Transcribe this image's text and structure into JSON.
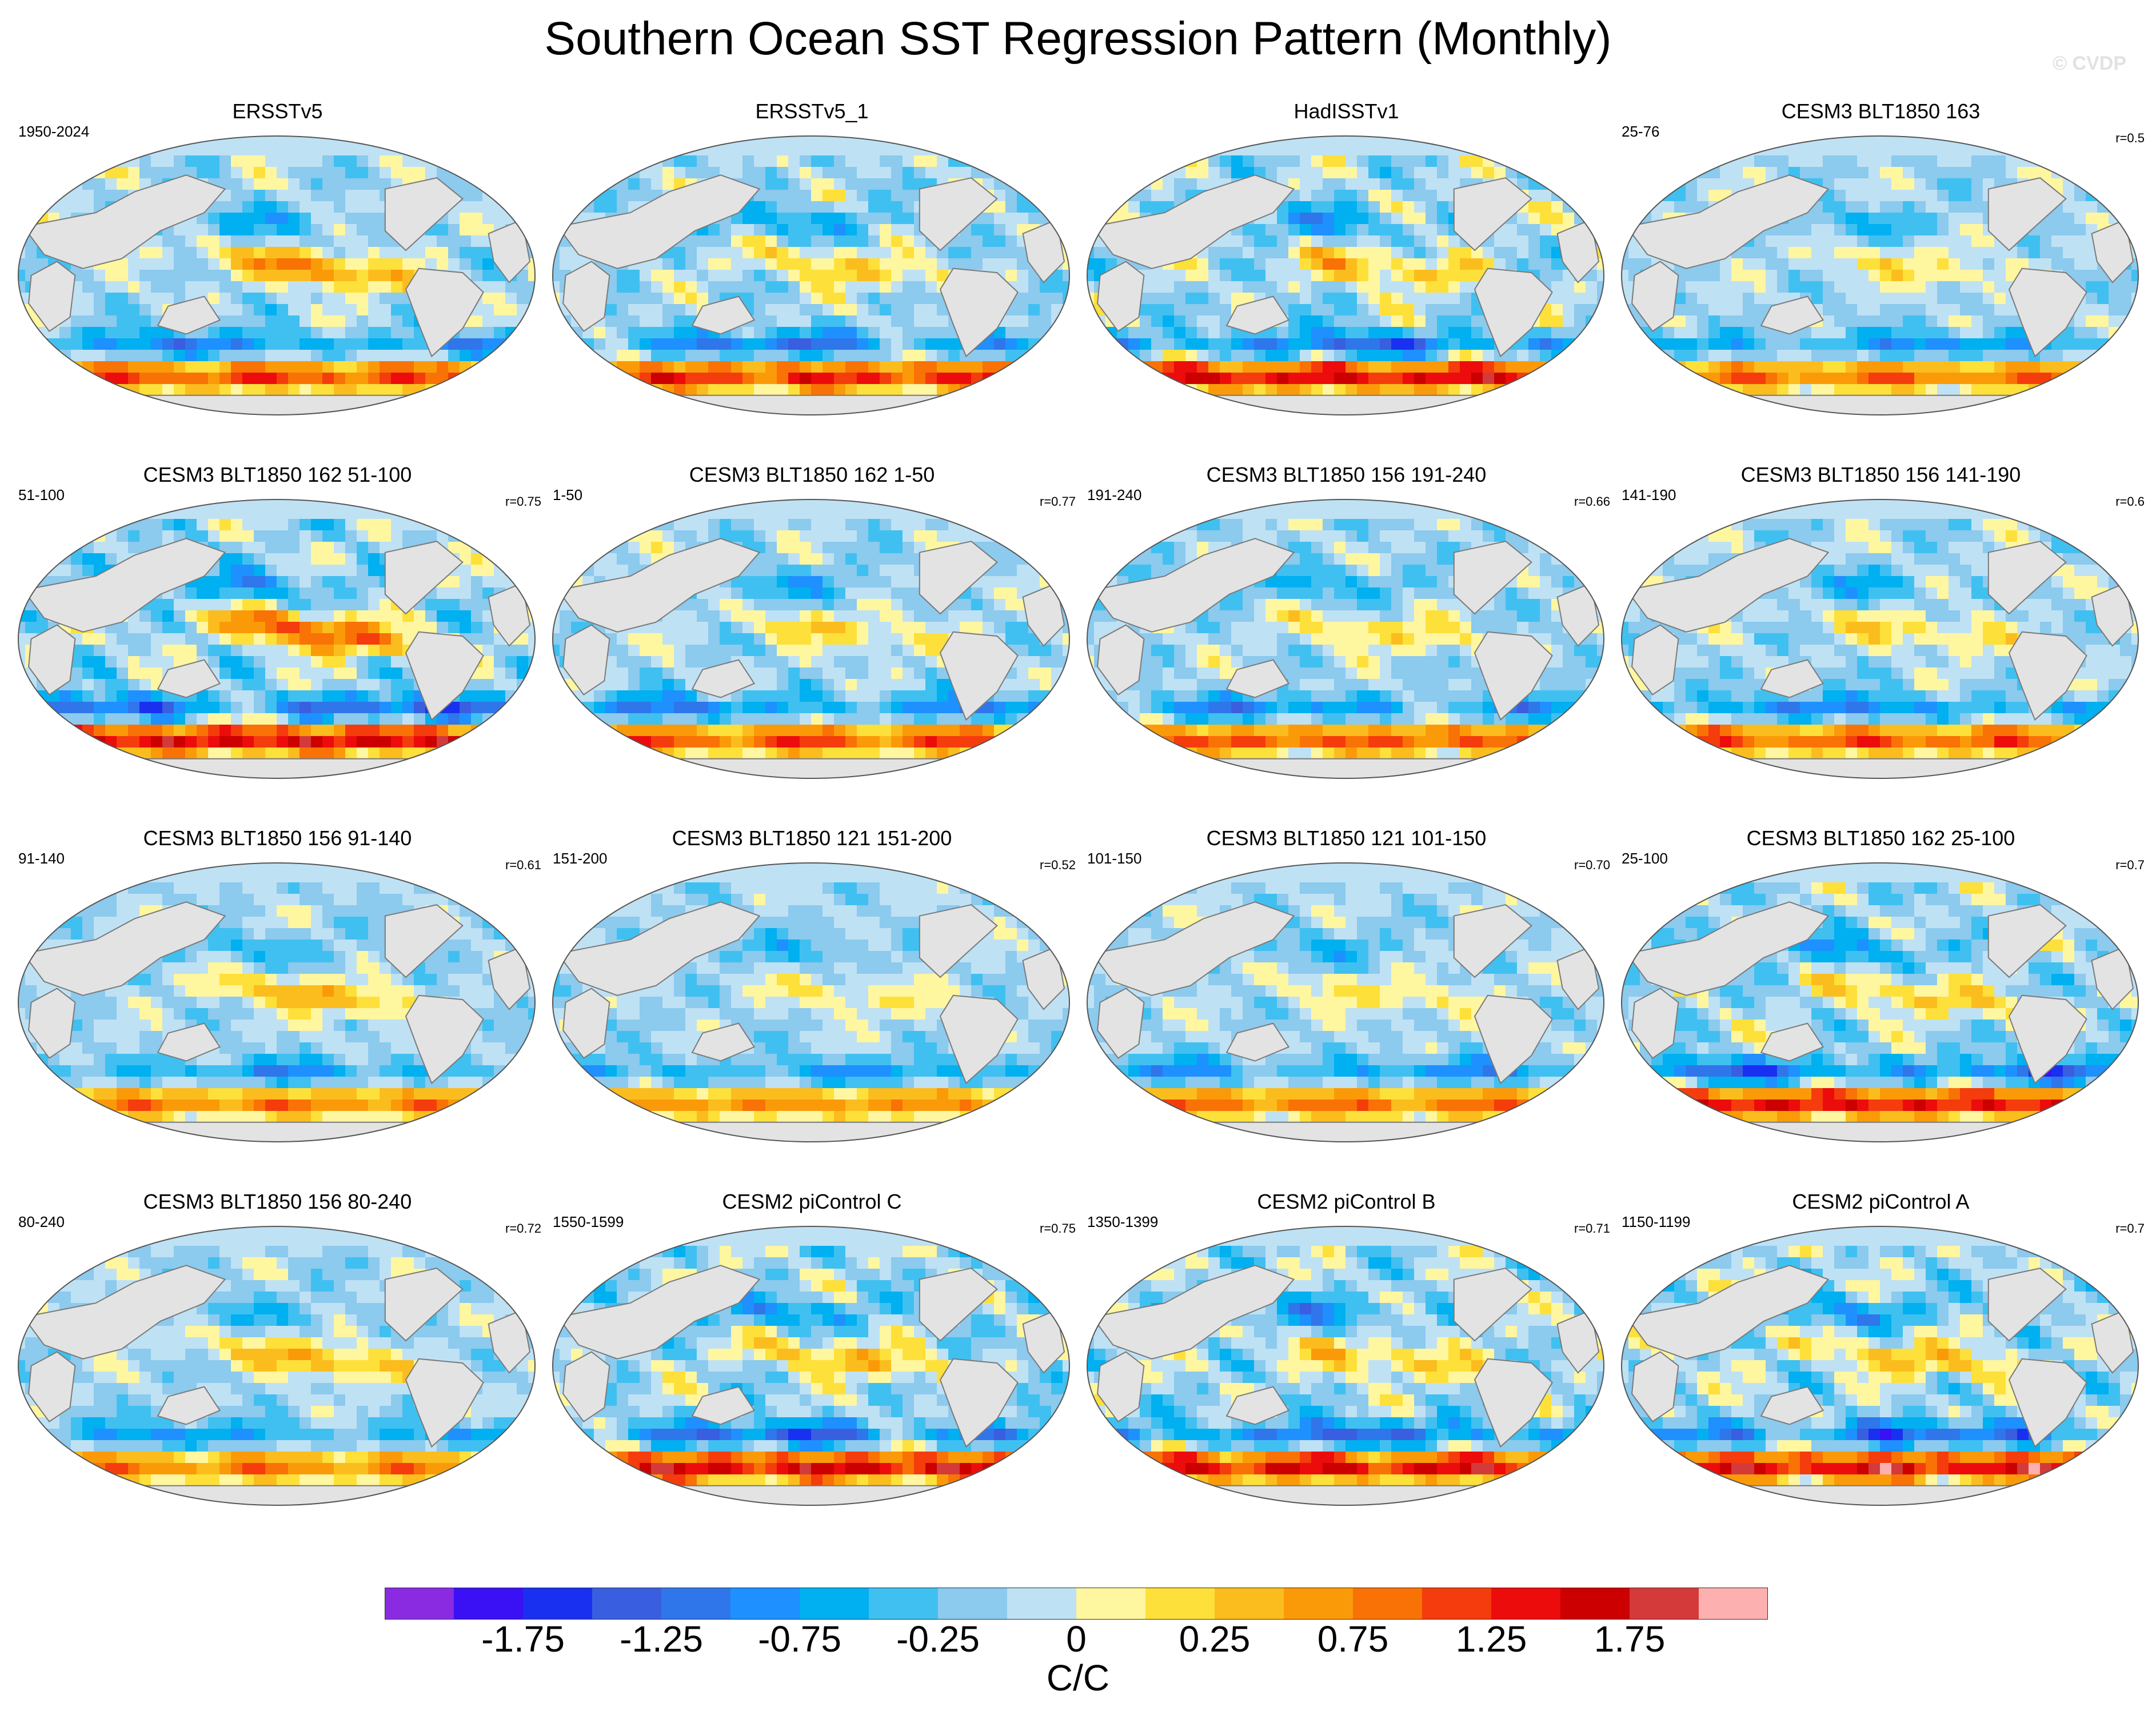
{
  "title": "Southern Ocean SST Regression Pattern (Monthly)",
  "watermark": "© CVDP",
  "panels": [
    {
      "title": "ERSSTv5",
      "left": "1950-2024",
      "right": "",
      "intensity": 1.0,
      "pattern": 0
    },
    {
      "title": "ERSSTv5_1",
      "left": "",
      "right": "",
      "intensity": 1.1,
      "pattern": 1
    },
    {
      "title": "HadISSTv1",
      "left": "",
      "right": "",
      "intensity": 1.25,
      "pattern": 2
    },
    {
      "title": "CESM3 BLT1850 163",
      "left": "25-76",
      "right": "r=0.5",
      "intensity": 0.85,
      "pattern": 3
    },
    {
      "title": "CESM3 BLT1850 162 51-100",
      "left": "51-100",
      "right": "r=0.75",
      "intensity": 1.3,
      "pattern": 4
    },
    {
      "title": "CESM3 BLT1850 162 1-50",
      "left": "1-50",
      "right": "r=0.77",
      "intensity": 0.95,
      "pattern": 5
    },
    {
      "title": "CESM3 BLT1850 156 191-240",
      "left": "191-240",
      "right": "r=0.66",
      "intensity": 0.95,
      "pattern": 6
    },
    {
      "title": "CESM3 BLT1850 156 141-190",
      "left": "141-190",
      "right": "r=0.6",
      "intensity": 0.95,
      "pattern": 7
    },
    {
      "title": "CESM3 BLT1850 156 91-140",
      "left": "91-140",
      "right": "r=0.61",
      "intensity": 0.8,
      "pattern": 8
    },
    {
      "title": "CESM3 BLT1850 121 151-200",
      "left": "151-200",
      "right": "r=0.52",
      "intensity": 0.75,
      "pattern": 9
    },
    {
      "title": "CESM3 BLT1850 121 101-150",
      "left": "101-150",
      "right": "r=0.70",
      "intensity": 0.85,
      "pattern": 10
    },
    {
      "title": "CESM3 BLT1850 162 25-100",
      "left": "25-100",
      "right": "r=0.7",
      "intensity": 1.2,
      "pattern": 11
    },
    {
      "title": "CESM3 BLT1850 156 80-240",
      "left": "80-240",
      "right": "r=0.72",
      "intensity": 0.8,
      "pattern": 12
    },
    {
      "title": "CESM2 piControl C",
      "left": "1550-1599",
      "right": "r=0.75",
      "intensity": 1.3,
      "pattern": 13
    },
    {
      "title": "CESM2 piControl B",
      "left": "1350-1399",
      "right": "r=0.71",
      "intensity": 1.25,
      "pattern": 14
    },
    {
      "title": "CESM2 piControl A",
      "left": "1150-1199",
      "right": "r=0.7",
      "intensity": 1.3,
      "pattern": 15
    }
  ],
  "colorbar": {
    "colors": [
      "#8a2be2",
      "#3a10f5",
      "#1a30f0",
      "#3a5ee0",
      "#2f76ea",
      "#1e90ff",
      "#00b0f0",
      "#40c0f0",
      "#8ccaee",
      "#bfe1f4",
      "#fff6a0",
      "#fde03a",
      "#fbbd1e",
      "#fb9a08",
      "#f97206",
      "#f53c0c",
      "#ec0c0c",
      "#cc0000",
      "#d43a3a",
      "#fdb0b0"
    ],
    "tick_labels": [
      "-1.75",
      "-1.25",
      "-0.75",
      "-0.25",
      "0",
      "0.25",
      "0.75",
      "1.25",
      "1.75"
    ],
    "units": "C/C"
  },
  "land_color": "#e3e3e3",
  "coast_color": "#7a7a7a"
}
